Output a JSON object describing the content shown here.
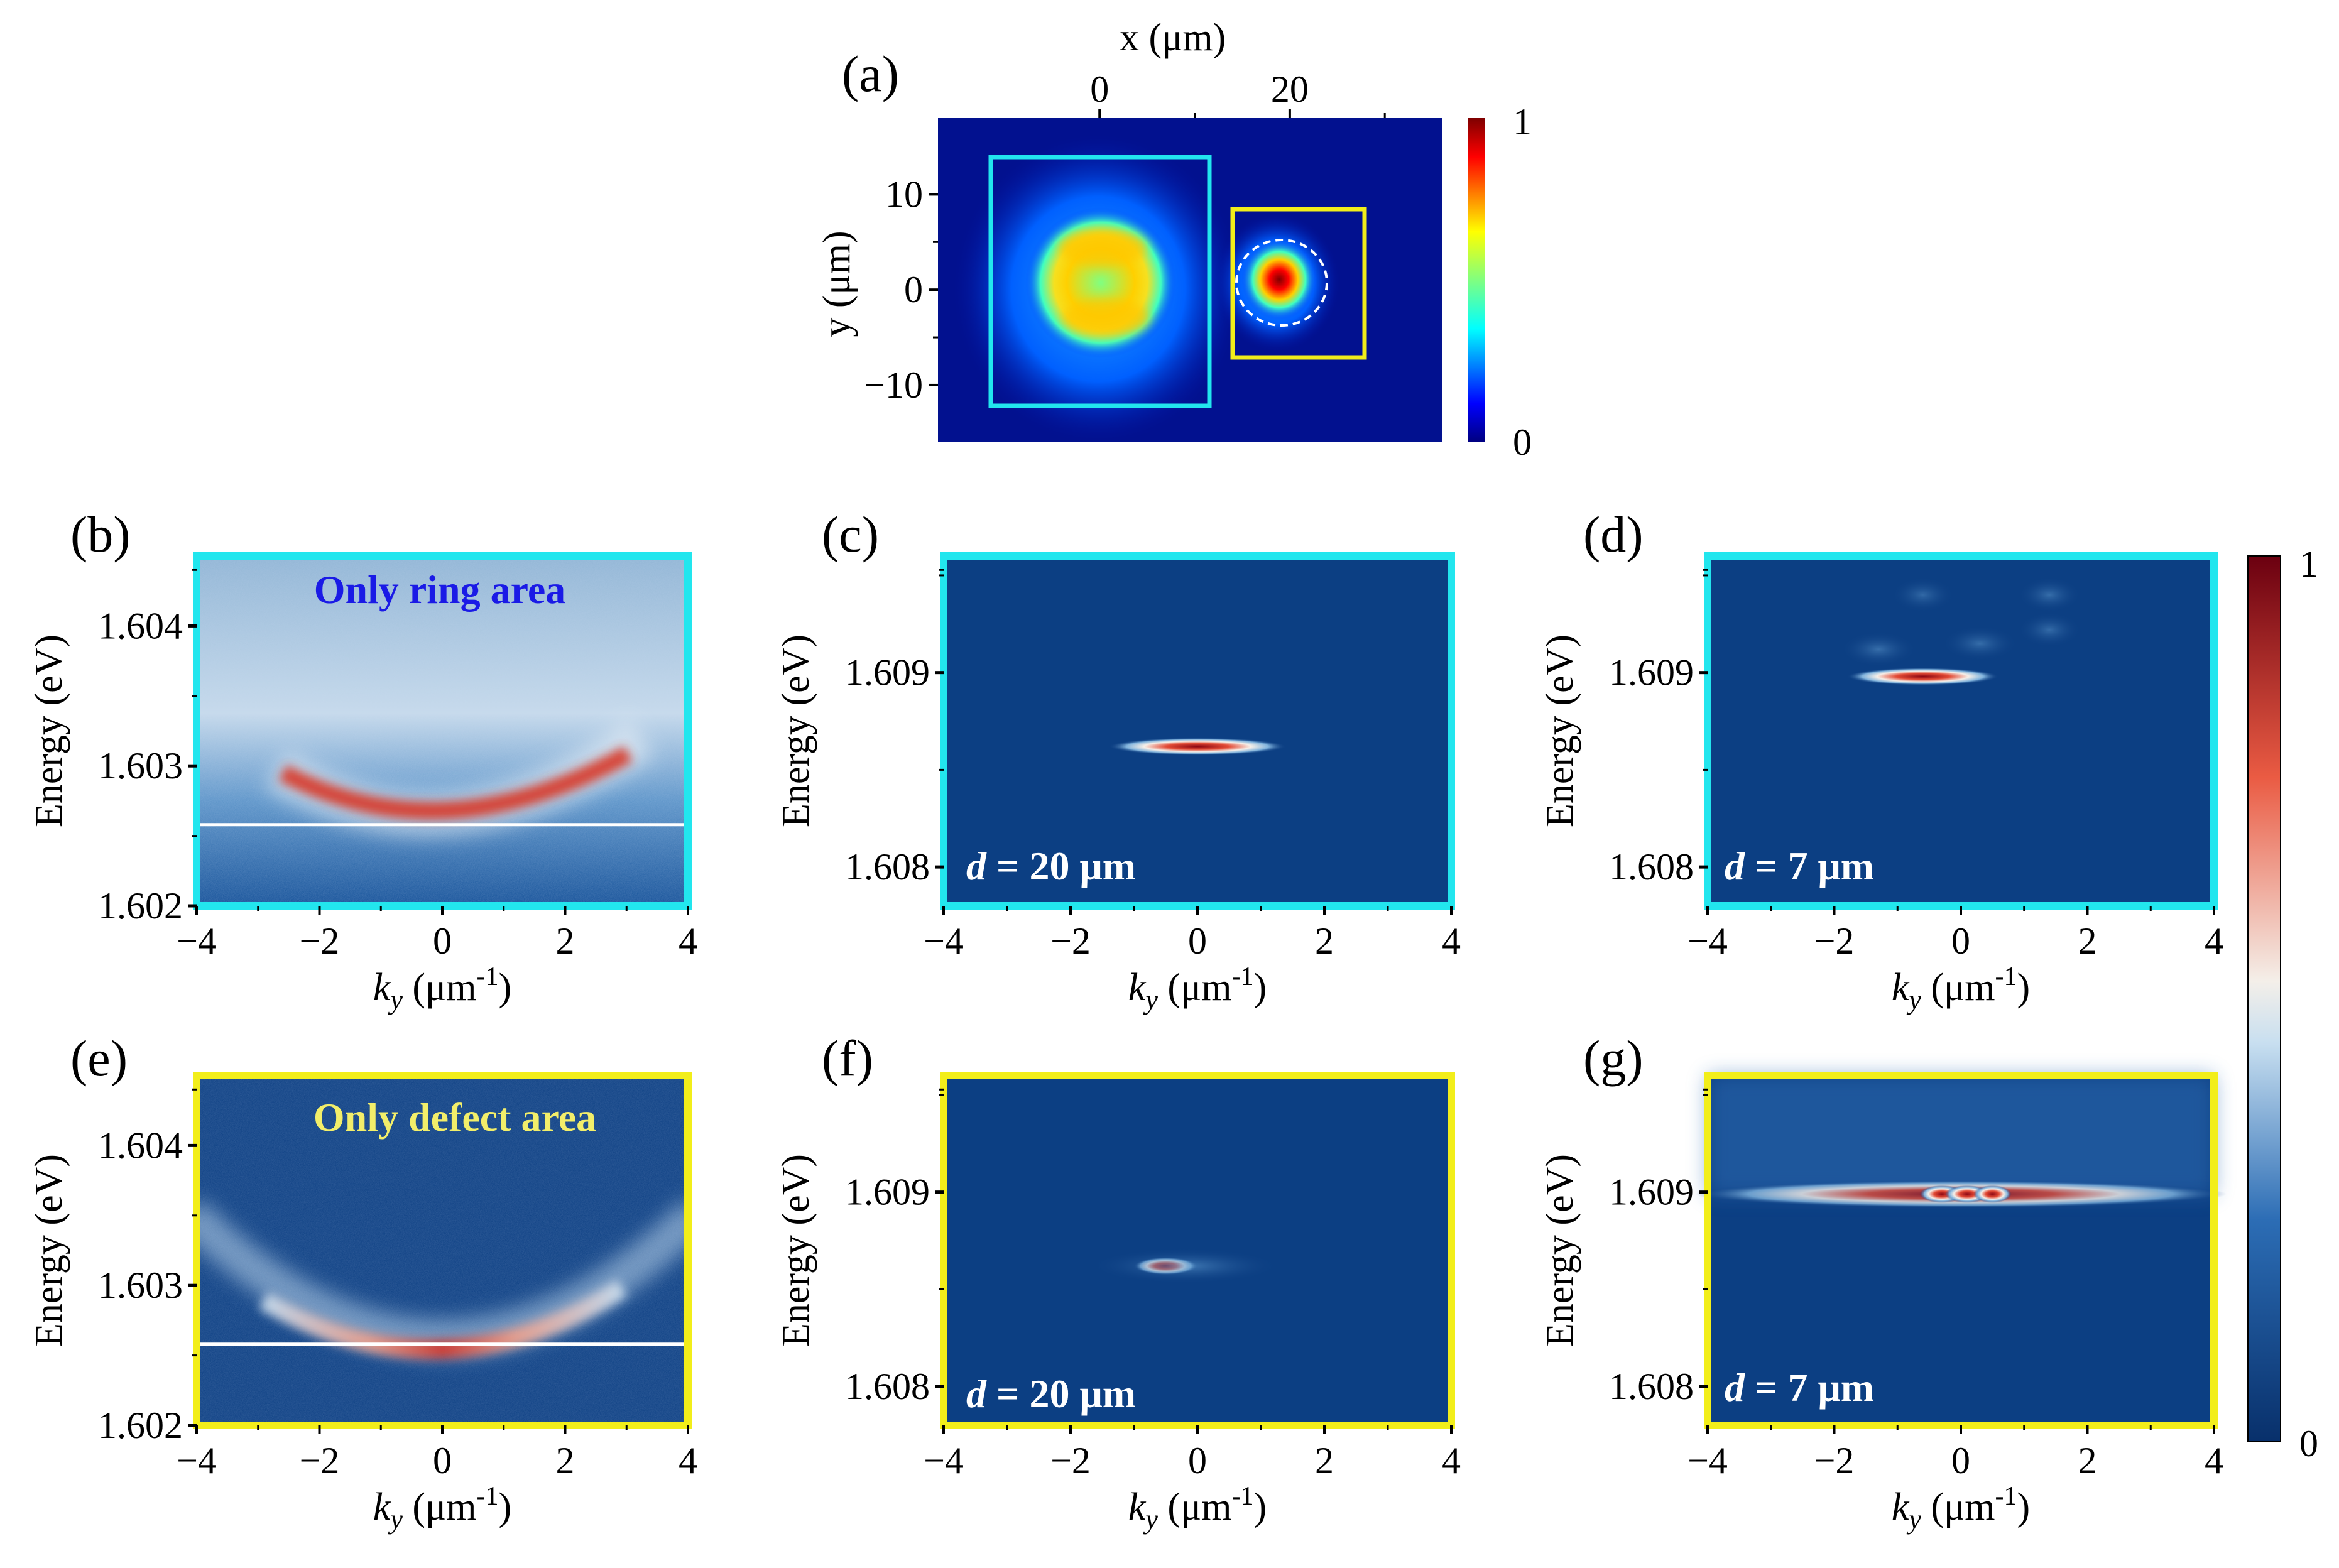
{
  "chart_data": [
    {
      "id": "a",
      "panel_label": "(a)",
      "type": "heatmap",
      "title": "",
      "xlabel": "x (μm)",
      "ylabel": "y (μm)",
      "xlim": [
        -17,
        36
      ],
      "ylim": [
        -16,
        18
      ],
      "x_ticks": [
        0,
        20
      ],
      "x_tick_labels": [
        "0",
        "20"
      ],
      "y_ticks": [
        10,
        0,
        -10
      ],
      "y_tick_labels": [
        "10",
        "0",
        "−10"
      ],
      "colorbar": {
        "min": 0,
        "max": 1,
        "min_label": "0",
        "max_label": "1",
        "colormap": "jet"
      },
      "regions": [
        {
          "name": "ring-area-box",
          "color": "#22e6ee",
          "x": [
            -11.5,
            11.5
          ],
          "y": [
            -12,
            13.5
          ]
        },
        {
          "name": "defect-area-box",
          "color": "#f2ee1a",
          "x": [
            14,
            28
          ],
          "y": [
            -7,
            8.5
          ]
        }
      ],
      "features": [
        {
          "name": "ring",
          "cx": 0,
          "cy": 0,
          "r": 6.5,
          "peak": 0.72
        },
        {
          "name": "defect",
          "cx": 20,
          "cy": 1,
          "r": 4,
          "peak": 1.0,
          "dashed_circle_r": 4.5
        }
      ]
    },
    {
      "id": "b",
      "panel_label": "(b)",
      "type": "heatmap",
      "frame_color": "#22e6ee",
      "annotation": "Only ring area",
      "annotation_color": "#1a1ae6",
      "xlabel_main": "k",
      "xlabel_sub": "y",
      "xlabel_unit": " (μm",
      "xlabel_sup": "-1",
      "xlabel_close": ")",
      "ylabel": "Energy (eV)",
      "xlim": [
        -4,
        4
      ],
      "ylim": [
        1.602,
        1.6045
      ],
      "x_ticks": [
        -4,
        -2,
        0,
        2,
        4
      ],
      "x_tick_labels": [
        "−4",
        "−2",
        "0",
        "2",
        "4"
      ],
      "y_ticks": [
        1.602,
        1.603,
        1.604
      ],
      "y_tick_labels": [
        "1.602",
        "1.603",
        "1.604"
      ],
      "dispersion": {
        "e0": 1.6026,
        "curvature": 5.5e-05,
        "k_range": [
          -3.2,
          3.2
        ],
        "width": 0.00013
      },
      "reference_line_energy": 1.60258
    },
    {
      "id": "c",
      "panel_label": "(c)",
      "type": "heatmap",
      "frame_color": "#22e6ee",
      "annotation_var": "d",
      "annotation_text": " = 20 μm",
      "annotation_color": "#ffffff",
      "xlabel_main": "k",
      "xlabel_sub": "y",
      "xlabel_unit": " (μm",
      "xlabel_sup": "-1",
      "xlabel_close": ")",
      "ylabel": "Energy (eV)",
      "xlim": [
        -4,
        4
      ],
      "ylim": [
        1.6078,
        1.6096
      ],
      "x_ticks": [
        -4,
        -2,
        0,
        2,
        4
      ],
      "x_tick_labels": [
        "−4",
        "−2",
        "0",
        "2",
        "4"
      ],
      "y_ticks": [
        1.608,
        1.609
      ],
      "y_tick_labels": [
        "1.608",
        "1.609"
      ],
      "emission": [
        {
          "k0": 0,
          "e0": 1.60862,
          "k_half": 1.4,
          "peak": 1.0
        }
      ]
    },
    {
      "id": "d",
      "panel_label": "(d)",
      "type": "heatmap",
      "frame_color": "#22e6ee",
      "annotation_var": "d",
      "annotation_text": " = 7 μm",
      "annotation_color": "#ffffff",
      "xlabel_main": "k",
      "xlabel_sub": "y",
      "xlabel_unit": " (μm",
      "xlabel_sup": "-1",
      "xlabel_close": ")",
      "ylabel": "Energy (eV)",
      "xlim": [
        -4,
        4
      ],
      "ylim": [
        1.6078,
        1.6096
      ],
      "x_ticks": [
        -4,
        -2,
        0,
        2,
        4
      ],
      "x_tick_labels": [
        "−4",
        "−2",
        "0",
        "2",
        "4"
      ],
      "y_ticks": [
        1.608,
        1.609
      ],
      "y_tick_labels": [
        "1.608",
        "1.609"
      ],
      "emission": [
        {
          "k0": -0.6,
          "e0": 1.60898,
          "k_half": 1.2,
          "peak": 1.0
        },
        {
          "k0": -1.3,
          "e0": 1.60912,
          "k_half": 0.6,
          "peak": 0.22
        },
        {
          "k0": 0.3,
          "e0": 1.60915,
          "k_half": 0.6,
          "peak": 0.2
        },
        {
          "k0": 1.4,
          "e0": 1.60922,
          "k_half": 0.5,
          "peak": 0.18
        },
        {
          "k0": 1.4,
          "e0": 1.6094,
          "k_half": 0.5,
          "peak": 0.2
        },
        {
          "k0": -0.6,
          "e0": 1.6094,
          "k_half": 0.5,
          "peak": 0.15
        }
      ]
    },
    {
      "id": "e",
      "panel_label": "(e)",
      "type": "heatmap",
      "frame_color": "#f2ee1a",
      "annotation": "Only defect area",
      "annotation_color": "#f2ee6a",
      "xlabel_main": "k",
      "xlabel_sub": "y",
      "xlabel_unit": " (μm",
      "xlabel_sup": "-1",
      "xlabel_close": ")",
      "ylabel": "Energy (eV)",
      "xlim": [
        -4,
        4
      ],
      "ylim": [
        1.602,
        1.6045
      ],
      "x_ticks": [
        -4,
        -2,
        0,
        2,
        4
      ],
      "x_tick_labels": [
        "−4",
        "−2",
        "0",
        "2",
        "4"
      ],
      "y_ticks": [
        1.602,
        1.603,
        1.604
      ],
      "y_tick_labels": [
        "1.602",
        "1.603",
        "1.604"
      ],
      "dispersion": {
        "e0": 1.6026,
        "curvature": 6.5e-05,
        "k_range": [
          -4,
          4
        ],
        "width": 0.00011
      },
      "reference_line_energy": 1.60258
    },
    {
      "id": "f",
      "panel_label": "(f)",
      "type": "heatmap",
      "frame_color": "#f2ee1a",
      "annotation_var": "d",
      "annotation_text": " = 20 μm",
      "annotation_color": "#ffffff",
      "xlabel_main": "k",
      "xlabel_sub": "y",
      "xlabel_unit": " (μm",
      "xlabel_sup": "-1",
      "xlabel_close": ")",
      "ylabel": "Energy (eV)",
      "xlim": [
        -4,
        4
      ],
      "ylim": [
        1.6078,
        1.6096
      ],
      "x_ticks": [
        -4,
        -2,
        0,
        2,
        4
      ],
      "x_tick_labels": [
        "−4",
        "−2",
        "0",
        "2",
        "4"
      ],
      "y_ticks": [
        1.608,
        1.609
      ],
      "y_tick_labels": [
        "1.608",
        "1.609"
      ],
      "emission": [
        {
          "k0": -0.5,
          "e0": 1.60862,
          "k_half": 0.5,
          "peak": 0.75
        },
        {
          "k0": -0.2,
          "e0": 1.60862,
          "k_half": 1.5,
          "peak": 0.35
        }
      ]
    },
    {
      "id": "g",
      "panel_label": "(g)",
      "type": "heatmap",
      "frame_color": "#f2ee1a",
      "annotation_var": "d",
      "annotation_text": " = 7 μm",
      "annotation_color": "#ffffff",
      "xlabel_main": "k",
      "xlabel_sub": "y",
      "xlabel_unit": " (μm",
      "xlabel_sup": "-1",
      "xlabel_close": ")",
      "ylabel": "Energy (eV)",
      "xlim": [
        -4,
        4
      ],
      "ylim": [
        1.6078,
        1.6096
      ],
      "x_ticks": [
        -4,
        -2,
        0,
        2,
        4
      ],
      "x_tick_labels": [
        "−4",
        "−2",
        "0",
        "2",
        "4"
      ],
      "y_ticks": [
        1.608,
        1.609
      ],
      "y_tick_labels": [
        "1.608",
        "1.609"
      ],
      "emission": [
        {
          "k0": 0,
          "e0": 1.60899,
          "k_half": 4.2,
          "peak": 0.5
        },
        {
          "k0": -0.3,
          "e0": 1.60899,
          "k_half": 0.35,
          "peak": 1.0
        },
        {
          "k0": 0.1,
          "e0": 1.60899,
          "k_half": 0.35,
          "peak": 0.95
        },
        {
          "k0": 0.5,
          "e0": 1.60899,
          "k_half": 0.3,
          "peak": 0.95
        }
      ]
    }
  ],
  "colorbar_main": {
    "min": 0,
    "max": 1,
    "min_label": "0",
    "max_label": "1",
    "colormap": "blue-white-red"
  }
}
